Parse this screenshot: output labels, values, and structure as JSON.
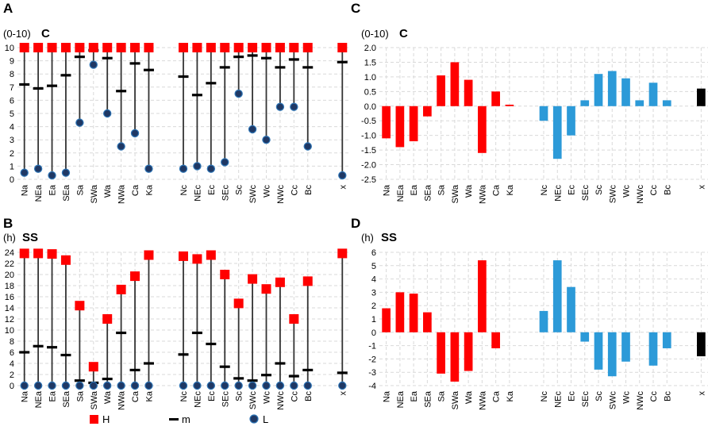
{
  "categories": [
    "Na",
    "NEa",
    "Ea",
    "SEa",
    "Sa",
    "SWa",
    "Wa",
    "NWa",
    "Ca",
    "Ka",
    "Nc",
    "NEc",
    "Ec",
    "SEc",
    "Sc",
    "SWc",
    "Wc",
    "NWc",
    "Cc",
    "Bc",
    "x"
  ],
  "legend": {
    "h_label": "H",
    "m_label": "m",
    "l_label": "L"
  },
  "colors": {
    "high": "#ff0000",
    "mean": "#000000",
    "low_fill": "#1f3864",
    "low_stroke": "#2e75b6",
    "a_group": "#ff0000",
    "c_group": "#2c9ad8",
    "x_group": "#000000",
    "grid": "#d9d9d9"
  },
  "chart_data": [
    {
      "panel": "A",
      "type": "range",
      "unit": "(0-10)",
      "variable": "C",
      "ylim": [
        0,
        10
      ],
      "yticks": [
        "0",
        "1",
        "2",
        "3",
        "4",
        "5",
        "6",
        "7",
        "8",
        "9",
        "10"
      ],
      "high": [
        10,
        10,
        10,
        10,
        10,
        10,
        10,
        10,
        10,
        10,
        10,
        10,
        10,
        10,
        10,
        10,
        10,
        10,
        10,
        10,
        10
      ],
      "mean": [
        7.2,
        6.9,
        7.1,
        7.9,
        9.3,
        9.8,
        9.2,
        6.7,
        8.8,
        8.3,
        7.8,
        6.4,
        7.3,
        8.5,
        9.3,
        9.4,
        9.2,
        8.5,
        9.1,
        8.5,
        8.9
      ],
      "low": [
        0.5,
        0.8,
        0.3,
        0.5,
        4.3,
        8.7,
        5.0,
        2.5,
        3.5,
        0.8,
        0.8,
        1.0,
        0.8,
        1.3,
        6.5,
        3.8,
        3.0,
        5.5,
        5.5,
        2.5,
        0.3
      ]
    },
    {
      "panel": "B",
      "type": "range",
      "unit": "(h)",
      "variable": "SS",
      "ylim": [
        0,
        24
      ],
      "yticks": [
        "0",
        "2",
        "4",
        "6",
        "8",
        "10",
        "12",
        "14",
        "16",
        "18",
        "20",
        "22",
        "24"
      ],
      "high": [
        23.8,
        23.8,
        23.7,
        22.6,
        14.4,
        3.4,
        12.0,
        17.3,
        19.7,
        23.5,
        23.3,
        22.8,
        23.5,
        20.0,
        14.8,
        19.2,
        17.4,
        18.6,
        12.0,
        18.8,
        23.8
      ],
      "mean": [
        6.0,
        7.1,
        6.9,
        5.5,
        0.9,
        0.5,
        1.2,
        9.5,
        2.8,
        4.0,
        5.6,
        9.5,
        7.5,
        3.4,
        1.3,
        0.9,
        1.9,
        4.0,
        1.7,
        2.8,
        2.3
      ],
      "low": [
        0,
        0,
        0,
        0,
        0,
        0,
        0,
        0,
        0,
        0,
        0,
        0,
        0,
        0,
        0,
        0,
        0,
        0,
        0,
        0,
        0
      ]
    },
    {
      "panel": "C",
      "type": "bar",
      "unit": "(0-10)",
      "variable": "C",
      "ylim": [
        -2.5,
        2.0
      ],
      "yticks": [
        "-2.5",
        "-2.0",
        "-1.5",
        "-1.0",
        "-0.5",
        "0.0",
        "0.5",
        "1.0",
        "1.5",
        "2.0"
      ],
      "values": [
        -1.1,
        -1.4,
        -1.2,
        -0.35,
        1.05,
        1.5,
        0.9,
        -1.6,
        0.5,
        0.05,
        -0.5,
        -1.8,
        -1.0,
        0.2,
        1.1,
        1.2,
        0.95,
        0.2,
        0.8,
        0.2,
        0.6
      ]
    },
    {
      "panel": "D",
      "type": "bar",
      "unit": "(h)",
      "variable": "SS",
      "ylim": [
        -4,
        6
      ],
      "yticks": [
        "-4",
        "-3",
        "-2",
        "-1",
        "0",
        "1",
        "2",
        "3",
        "4",
        "5",
        "6"
      ],
      "values": [
        1.8,
        3.0,
        2.9,
        1.5,
        -3.1,
        -3.7,
        -2.9,
        5.4,
        -1.2,
        0,
        1.6,
        5.4,
        3.4,
        -0.7,
        -2.8,
        -3.3,
        -2.2,
        0,
        -2.5,
        -1.2,
        -1.8
      ]
    }
  ]
}
